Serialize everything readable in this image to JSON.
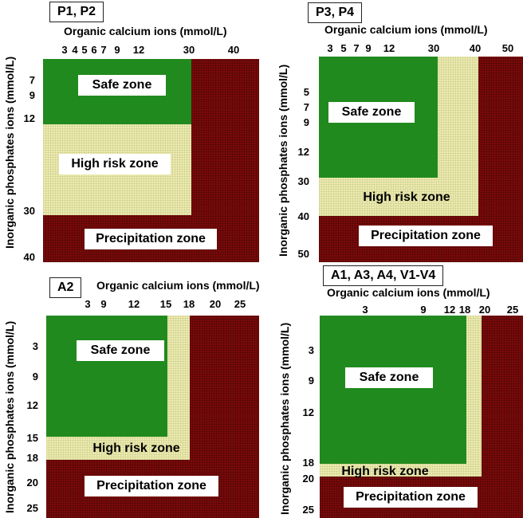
{
  "panels": {
    "p1": {
      "tag": "P1, P2",
      "x_title": "Organic calcium ions (mmol/L)",
      "y_title": "Inorganic phosphates ions (mmol/L)",
      "x_ticks": [
        "3",
        "4",
        "5",
        "6",
        "7",
        "9",
        "12",
        "30",
        "40"
      ],
      "y_ticks": [
        "7",
        "9",
        "12",
        "30",
        "40"
      ],
      "labels": {
        "safe": "Safe zone",
        "risk": "High risk zone",
        "precip": "Precipitation zone"
      }
    },
    "p3": {
      "tag": "P3, P4",
      "x_title": "Organic calcium ions (mmol/L)",
      "y_title": "Inorganic phosphates ions (mmol/L)",
      "x_ticks": [
        "3",
        "5",
        "7",
        "9",
        "12",
        "30",
        "40",
        "50"
      ],
      "y_ticks": [
        "5",
        "7",
        "9",
        "12",
        "30",
        "40",
        "50"
      ],
      "labels": {
        "safe": "Safe zone",
        "risk": "High risk zone",
        "precip": "Precipitation zone"
      }
    },
    "a2": {
      "tag": "A2",
      "x_title": "Organic calcium ions (mmol/L)",
      "y_title": "Inorganic phosphates ions (mmol/L)",
      "x_ticks": [
        "3",
        "9",
        "12",
        "15",
        "18",
        "20",
        "25"
      ],
      "y_ticks": [
        "3",
        "9",
        "12",
        "15",
        "18",
        "20",
        "25"
      ],
      "labels": {
        "safe": "Safe zone",
        "risk": "High risk zone",
        "precip": "Precipitation zone"
      }
    },
    "a1": {
      "tag": "A1, A3, A4, V1-V4",
      "x_title": "Organic calcium ions (mmol/L)",
      "y_title": "Inorganic phosphates ions (mmol/L)",
      "x_ticks": [
        "3",
        "9",
        "12",
        "18",
        "20",
        "25"
      ],
      "y_ticks": [
        "3",
        "9",
        "12",
        "18",
        "20",
        "25"
      ],
      "labels": {
        "safe": "Safe zone",
        "risk": "High risk zone",
        "precip": "Precipitation zone"
      }
    }
  },
  "colors": {
    "safe": "#218a1e",
    "high_risk": "#ecebb0",
    "precipitation": "#7a0a0a"
  }
}
